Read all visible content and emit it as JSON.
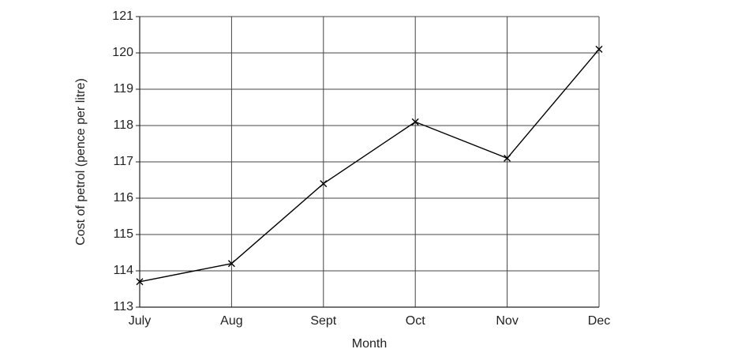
{
  "chart_data": {
    "type": "line",
    "x_label": "Month",
    "y_label": "Cost of petrol (pence per litre)",
    "categories": [
      "July",
      "Aug",
      "Sept",
      "Oct",
      "Nov",
      "Dec"
    ],
    "series": [
      {
        "values": [
          113.7,
          114.2,
          116.4,
          118.1,
          117.1,
          120.1
        ],
        "color": "#000000",
        "marker": "x"
      }
    ],
    "ylim": [
      113,
      121
    ],
    "yticks": [
      113,
      114,
      115,
      116,
      117,
      118,
      119,
      120,
      121
    ],
    "grid": true
  }
}
